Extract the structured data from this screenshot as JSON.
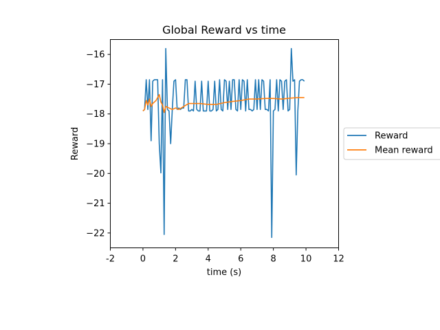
{
  "chart_data": {
    "type": "line",
    "title": "Global Reward vs time",
    "xlabel": "time (s)",
    "ylabel": "Reward",
    "xlim": [
      -2,
      12
    ],
    "ylim": [
      -22.5,
      -15.5
    ],
    "x_ticks": [
      -2,
      0,
      2,
      4,
      6,
      8,
      10,
      12
    ],
    "x_tick_labels": [
      "-2",
      "0",
      "2",
      "4",
      "6",
      "8",
      "10",
      "12"
    ],
    "y_ticks": [
      -22,
      -21,
      -20,
      -19,
      -18,
      -17,
      -16
    ],
    "y_tick_labels": [
      "−22",
      "−21",
      "−20",
      "−19",
      "−18",
      "−17",
      "−16"
    ],
    "grid": false,
    "legend_position": "outside-right",
    "series": [
      {
        "name": "Reward",
        "color": "#1f77b4",
        "x": [
          0.0,
          0.1,
          0.2,
          0.3,
          0.4,
          0.5,
          0.6,
          0.7,
          0.8,
          0.9,
          1.0,
          1.1,
          1.2,
          1.3,
          1.4,
          1.5,
          1.6,
          1.7,
          1.8,
          1.9,
          2.0,
          2.1,
          2.2,
          2.3,
          2.4,
          2.5,
          2.6,
          2.7,
          2.8,
          2.9,
          3.0,
          3.1,
          3.2,
          3.3,
          3.4,
          3.5,
          3.6,
          3.7,
          3.8,
          3.9,
          4.0,
          4.1,
          4.2,
          4.3,
          4.4,
          4.5,
          4.6,
          4.7,
          4.8,
          4.9,
          5.0,
          5.1,
          5.2,
          5.3,
          5.4,
          5.5,
          5.6,
          5.7,
          5.8,
          5.9,
          6.0,
          6.1,
          6.2,
          6.3,
          6.4,
          6.5,
          6.6,
          6.7,
          6.8,
          6.9,
          7.0,
          7.1,
          7.2,
          7.3,
          7.4,
          7.5,
          7.6,
          7.7,
          7.8,
          7.9,
          8.0,
          8.1,
          8.2,
          8.3,
          8.4,
          8.5,
          8.6,
          8.7,
          8.8,
          8.9,
          9.0,
          9.1,
          9.2,
          9.3,
          9.4,
          9.5,
          9.6,
          9.7,
          9.8,
          9.9
        ],
        "values": [
          -17.9,
          -17.85,
          -16.85,
          -17.85,
          -16.85,
          -18.9,
          -16.9,
          -16.85,
          -16.85,
          -16.85,
          -19.0,
          -19.98,
          -16.85,
          -22.05,
          -15.8,
          -17.85,
          -17.9,
          -19.0,
          -17.85,
          -16.9,
          -16.85,
          -17.85,
          -17.8,
          -17.85,
          -17.8,
          -17.8,
          -16.85,
          -16.85,
          -17.9,
          -17.9,
          -17.85,
          -17.9,
          -16.9,
          -17.85,
          -17.9,
          -17.9,
          -16.9,
          -17.9,
          -17.9,
          -17.9,
          -16.9,
          -17.9,
          -17.9,
          -17.85,
          -16.9,
          -17.9,
          -17.85,
          -16.85,
          -17.85,
          -17.9,
          -16.85,
          -16.9,
          -17.85,
          -16.9,
          -17.85,
          -16.85,
          -16.85,
          -17.85,
          -17.9,
          -16.85,
          -17.85,
          -16.85,
          -16.9,
          -17.9,
          -16.85,
          -17.85,
          -17.85,
          -17.9,
          -17.85,
          -16.85,
          -17.85,
          -16.85,
          -17.85,
          -16.85,
          -16.9,
          -17.85,
          -17.85,
          -17.9,
          -16.85,
          -22.15,
          -17.9,
          -17.85,
          -16.85,
          -17.9,
          -16.85,
          -16.9,
          -17.85,
          -16.9,
          -16.85,
          -17.9,
          -17.85,
          -15.8,
          -16.9,
          -16.85,
          -20.05,
          -17.9,
          -16.9,
          -16.85,
          -16.85,
          -16.9
        ]
      },
      {
        "name": "Mean reward",
        "color": "#ff7f0e",
        "x": [
          0.0,
          0.1,
          0.2,
          0.3,
          0.4,
          0.5,
          0.6,
          0.8,
          1.0,
          1.1,
          1.2,
          1.3,
          1.4,
          1.6,
          1.8,
          2.0,
          2.2,
          2.5,
          2.8,
          3.0,
          3.5,
          4.0,
          4.5,
          5.0,
          5.5,
          6.0,
          6.5,
          7.0,
          7.5,
          8.0,
          8.5,
          9.0,
          9.5,
          9.9
        ],
        "values": [
          -17.9,
          -17.85,
          -17.55,
          -17.7,
          -17.5,
          -17.75,
          -17.65,
          -17.55,
          -17.35,
          -17.6,
          -17.7,
          -17.95,
          -17.75,
          -17.8,
          -17.85,
          -17.8,
          -17.85,
          -17.75,
          -17.65,
          -17.65,
          -17.65,
          -17.68,
          -17.68,
          -17.62,
          -17.58,
          -17.55,
          -17.5,
          -17.5,
          -17.48,
          -17.48,
          -17.5,
          -17.47,
          -17.45,
          -17.45
        ]
      }
    ]
  }
}
